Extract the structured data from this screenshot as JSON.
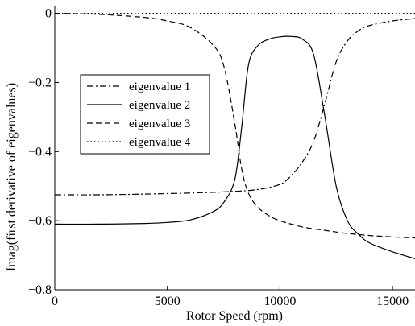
{
  "chart_data": {
    "type": "line",
    "xlabel": "Rotor Speed (rpm)",
    "ylabel": "Imag(first derivative of eigenvalues)",
    "xlim": [
      0,
      16000
    ],
    "ylim": [
      -0.8,
      0.02
    ],
    "xticks": [
      0,
      5000,
      10000,
      15000
    ],
    "xtick_labels": [
      "0",
      "5000",
      "10000",
      "15000"
    ],
    "yticks": [
      0,
      -0.2,
      -0.4,
      -0.6,
      -0.8
    ],
    "ytick_labels": [
      "0",
      "−0.2",
      "−0.4",
      "−0.6",
      "−0.8"
    ],
    "grid": false,
    "legend_position": "left",
    "series": [
      {
        "name": "eigenvalue 1",
        "style": "dashdot",
        "x": [
          0,
          2000,
          4000,
          6000,
          7000,
          8000,
          9000,
          10000,
          10500,
          11000,
          11500,
          12000,
          12500,
          13000,
          13500,
          14000,
          15000,
          16000
        ],
        "y": [
          -0.525,
          -0.525,
          -0.523,
          -0.52,
          -0.518,
          -0.515,
          -0.51,
          -0.495,
          -0.47,
          -0.43,
          -0.37,
          -0.26,
          -0.14,
          -0.08,
          -0.05,
          -0.035,
          -0.022,
          -0.015
        ]
      },
      {
        "name": "eigenvalue 2",
        "style": "solid",
        "x": [
          0,
          2000,
          4000,
          5000,
          6000,
          7000,
          7500,
          8000,
          8300,
          8600,
          9000,
          9500,
          10000,
          10500,
          11000,
          11500,
          12000,
          12500,
          13000,
          13500,
          14000,
          15000,
          16000
        ],
        "y": [
          -0.61,
          -0.61,
          -0.608,
          -0.605,
          -0.598,
          -0.575,
          -0.548,
          -0.48,
          -0.33,
          -0.15,
          -0.095,
          -0.075,
          -0.068,
          -0.067,
          -0.075,
          -0.12,
          -0.3,
          -0.5,
          -0.6,
          -0.64,
          -0.665,
          -0.69,
          -0.71
        ]
      },
      {
        "name": "eigenvalue 3",
        "style": "dashed",
        "x": [
          0,
          2000,
          4000,
          5000,
          6000,
          7000,
          7500,
          8000,
          8300,
          8600,
          9000,
          9500,
          10000,
          11000,
          12000,
          13000,
          14000,
          15000,
          16000
        ],
        "y": [
          0,
          -0.003,
          -0.012,
          -0.022,
          -0.04,
          -0.09,
          -0.15,
          -0.32,
          -0.45,
          -0.52,
          -0.56,
          -0.585,
          -0.6,
          -0.618,
          -0.628,
          -0.637,
          -0.643,
          -0.647,
          -0.65
        ]
      },
      {
        "name": "eigenvalue 4",
        "style": "dotted",
        "x": [
          0,
          16000
        ],
        "y": [
          0,
          0
        ]
      }
    ]
  }
}
